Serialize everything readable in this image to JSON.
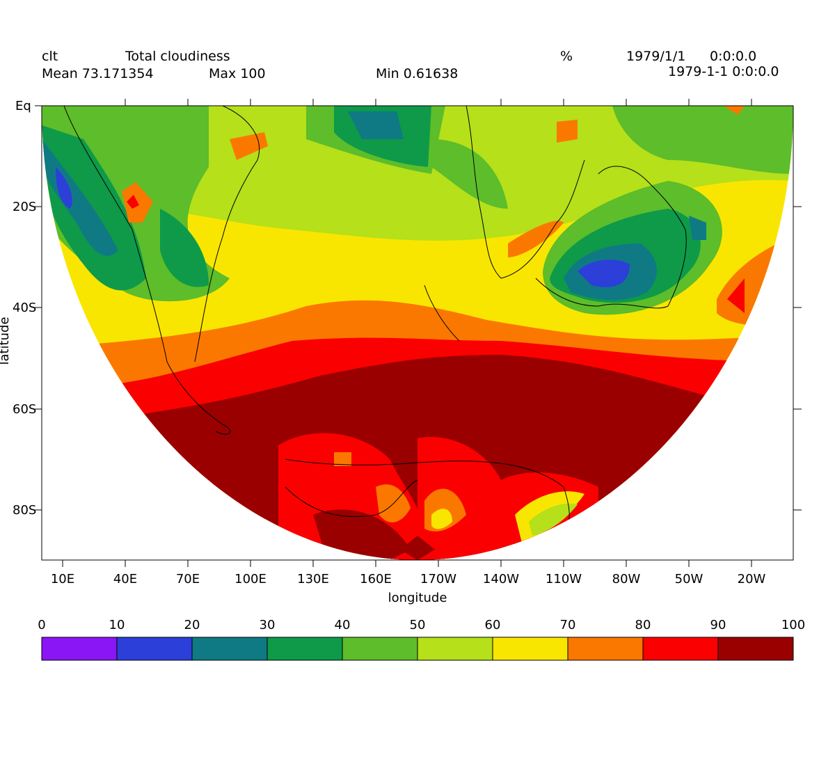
{
  "header": {
    "var_name": "clt",
    "long_name": "Total cloudiness",
    "units": "%",
    "date1": "1979/1/1",
    "time1": "0:0:0.0",
    "date2": "1979-1-1 0:0:0.0",
    "mean": "Mean 73.171354",
    "max": "Max 100",
    "min": "Min 0.61638"
  },
  "axes": {
    "xlabel": "longitude",
    "ylabel": "latitude",
    "x_ticks": [
      "10E",
      "40E",
      "70E",
      "100E",
      "130E",
      "160E",
      "170W",
      "140W",
      "110W",
      "80W",
      "50W",
      "20W"
    ],
    "y_ticks": [
      "Eq",
      "20S",
      "40S",
      "60S",
      "80S"
    ]
  },
  "colorbar": {
    "labels": [
      "0",
      "10",
      "20",
      "30",
      "40",
      "50",
      "60",
      "70",
      "80",
      "90",
      "100"
    ],
    "colors": [
      "#8a15f5",
      "#2c3fd8",
      "#0f7a84",
      "#0e9a49",
      "#5dbd2a",
      "#b5e01a",
      "#f9e600",
      "#fb7800",
      "#fb0000",
      "#9a0000"
    ]
  },
  "map_data": {
    "projection": "polar-like hemisphere (southern)",
    "lon_range": [
      0,
      360
    ],
    "lat_range": [
      -90,
      0
    ],
    "value_range": [
      0,
      100
    ]
  }
}
